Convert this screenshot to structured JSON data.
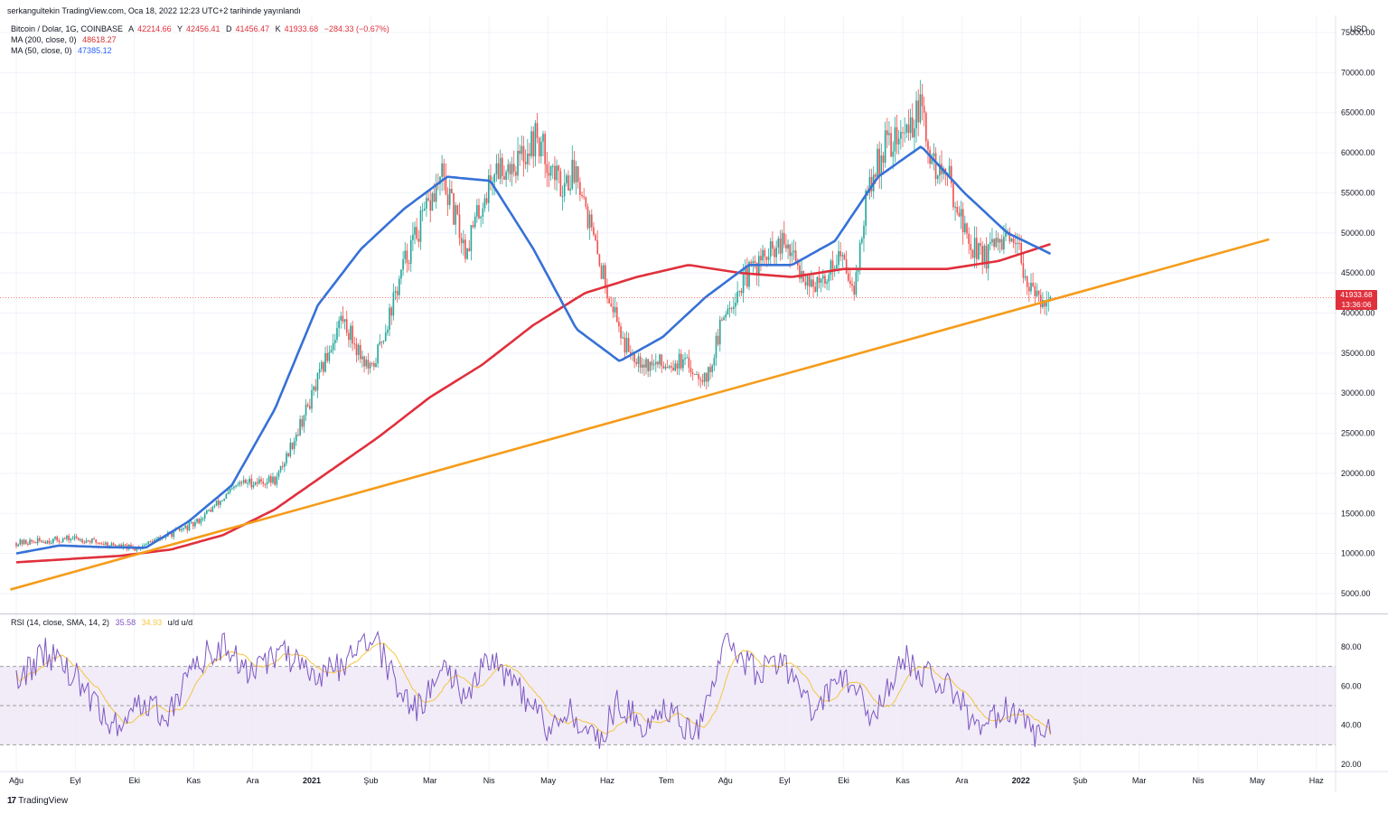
{
  "header": {
    "publisher": "serkangultekin TradingView.com, Oca 18, 2022 12:23 UTC+2 tarihinde yayınlandı"
  },
  "legend": {
    "symbol": "Bitcoin / Dolar, 1G, COINBASE",
    "ohlc": [
      {
        "k": "A",
        "v": "42214.66"
      },
      {
        "k": "Y",
        "v": "42456.41"
      },
      {
        "k": "D",
        "v": "41456.47"
      },
      {
        "k": "K",
        "v": "41933.68"
      }
    ],
    "change": "−284.33 (−0.67%)",
    "ma200_label": "MA (200, close, 0)",
    "ma200_value": "48618.27",
    "ma50_label": "MA (50, close, 0)",
    "ma50_value": "47385.12",
    "rsi_label": "RSI (14, close, SMA, 14, 2)",
    "rsi_value": "35.58",
    "rsi_sma_value": "34.93",
    "rsi_suffix": "u/d u/d"
  },
  "price_badge": {
    "price": "41933.68",
    "time": "13:36:06"
  },
  "currency": "USD",
  "watermark": "TradingView",
  "colors": {
    "up": "#26a69a",
    "down": "#ef5350",
    "ma50": "#3671d6",
    "ma200": "#e0303c",
    "trend": "#f59c1a",
    "rsi": "#7e57c2",
    "rsi_sma": "#f5c542",
    "rsi_band": "#ede7f6"
  },
  "chart_data": [
    {
      "type": "candlestick",
      "title": "Bitcoin / Dolar, 1G, COINBASE",
      "ylabel": "USD",
      "ylim": [
        0,
        75000
      ],
      "x_tick_labels": [
        "Ağu",
        "Eyl",
        "Eki",
        "Kas",
        "Ara",
        "2021",
        "Şub",
        "Mar",
        "Nis",
        "May",
        "Haz",
        "Tem",
        "Ağu",
        "Eyl",
        "Eki",
        "Kas",
        "Ara",
        "2022",
        "Şub",
        "Mar",
        "Nis",
        "May",
        "Haz"
      ],
      "bold_ticks": [
        "2021",
        "2022"
      ],
      "y_tick_labels": [
        "75000.00",
        "70000.00",
        "65000.00",
        "60000.00",
        "55000.00",
        "50000.00",
        "45000.00",
        "40000.00",
        "35000.00",
        "30000.00",
        "25000.00",
        "20000.00",
        "15000.00",
        "10000.00",
        "5000.00"
      ],
      "price_anchors": {
        "months_from_aug_2020": [
          0,
          1,
          2,
          3,
          3.8,
          4.4,
          5,
          5.5,
          6,
          6.2,
          6.6,
          7.2,
          7.6,
          8.1,
          8.5,
          8.8,
          9.2,
          9.5,
          9.8,
          10.3,
          10.7,
          11.2,
          11.7,
          12,
          12.5,
          13,
          13.3,
          13.6,
          13.9,
          14.2,
          14.4,
          14.7,
          15,
          15.3,
          15.5,
          15.8,
          16.1,
          16.4,
          16.7,
          17,
          17.2,
          17.5
        ],
        "close": [
          11300,
          11900,
          10600,
          13600,
          18800,
          19200,
          29500,
          39500,
          32500,
          37000,
          47000,
          57000,
          48000,
          58000,
          59000,
          62000,
          56000,
          58000,
          48000,
          36000,
          33500,
          34000,
          32000,
          40500,
          46000,
          48500,
          45000,
          43000,
          47500,
          43500,
          55000,
          61000,
          62000,
          65500,
          58500,
          56500,
          49000,
          47000,
          49000,
          47000,
          42000,
          41933
        ]
      },
      "series": [
        {
          "name": "MA (200, close, 0)",
          "last": 48618.27,
          "anchors_close": [
            8900,
            9300,
            9700,
            10500,
            12300,
            15500,
            20000,
            24500,
            29500,
            33500,
            38500,
            42500,
            44500,
            46000,
            45000,
            44500,
            45500,
            45500,
            45500,
            46500,
            48600
          ]
        },
        {
          "name": "MA (50, close, 0)",
          "last": 47385.12,
          "anchors_close": [
            10000,
            11000,
            10800,
            10700,
            14000,
            18500,
            28000,
            41000,
            48000,
            53000,
            57000,
            56500,
            48000,
            38000,
            34000,
            37000,
            42000,
            46000,
            46000,
            49000,
            57000,
            60800,
            55000,
            50000,
            47400
          ]
        },
        {
          "name": "Trend line",
          "from": {
            "month": -0.1,
            "value": 5500
          },
          "to": {
            "month": 21.2,
            "value": 49200
          }
        }
      ]
    },
    {
      "type": "line",
      "title": "RSI (14, close, SMA, 14, 2)",
      "ylim": [
        15,
        95
      ],
      "y_tick_labels": [
        "80.00",
        "60.00",
        "40.00",
        "20.00"
      ],
      "bands": {
        "upper": 70,
        "middle": 50,
        "lower": 30
      },
      "series": [
        {
          "name": "RSI",
          "last": 35.58,
          "anchors_month": [
            0,
            0.5,
            1,
            1.6,
            2,
            2.6,
            3,
            3.5,
            4,
            4.5,
            5,
            5.5,
            6,
            6.3,
            6.7,
            7.3,
            7.6,
            8,
            8.5,
            9,
            9.4,
            9.8,
            10.2,
            10.6,
            11,
            11.5,
            12,
            12.5,
            13,
            13.5,
            14,
            14.5,
            15,
            15.4,
            15.8,
            16.3,
            16.8,
            17.2,
            17.5
          ],
          "anchors_value": [
            62,
            78,
            65,
            38,
            50,
            46,
            72,
            80,
            66,
            78,
            63,
            70,
            88,
            70,
            47,
            69,
            55,
            76,
            58,
            38,
            48,
            30,
            52,
            40,
            48,
            36,
            80,
            68,
            70,
            46,
            65,
            44,
            75,
            65,
            60,
            36,
            50,
            34,
            35.58
          ]
        },
        {
          "name": "RSI SMA",
          "last": 34.93
        }
      ]
    }
  ]
}
